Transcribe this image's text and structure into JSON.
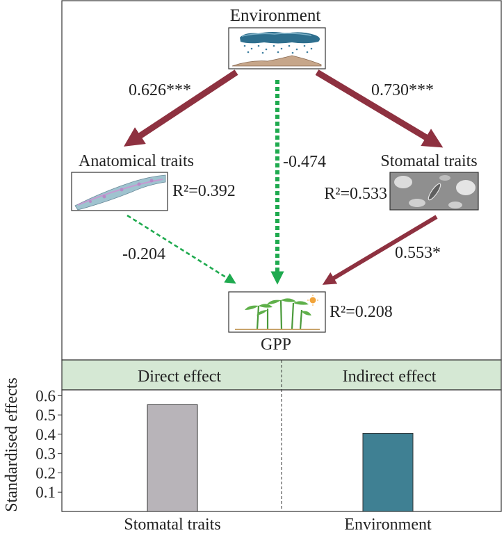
{
  "diagram": {
    "nodes": {
      "environment": "Environment",
      "anatomical": "Anatomical traits",
      "stomatal": "Stomatal traits",
      "gpp": "GPP"
    },
    "r2": {
      "anatomical": "R²=0.392",
      "stomatal": "R²=0.533",
      "gpp": "R²=0.208"
    },
    "paths": {
      "env_to_anatomical": "0.626***",
      "env_to_stomatal": "0.730***",
      "env_to_gpp": "-0.474",
      "anatomical_to_gpp": "-0.204",
      "stomatal_to_gpp": "0.553*"
    },
    "colors": {
      "positive_path": "#8e3140",
      "negative_path": "#1faa4f",
      "header_band": "#d5e8d4"
    }
  },
  "chart_data": {
    "type": "bar",
    "categories": [
      "Stomatal traits",
      "Environment"
    ],
    "values": [
      0.553,
      0.405
    ],
    "groups": [
      "Direct effect",
      "Indirect effect"
    ],
    "xlabel": "",
    "ylabel": "Standardised effects",
    "yticks": [
      0.1,
      0.2,
      0.3,
      0.4,
      0.5,
      0.6
    ],
    "ylim": [
      0,
      0.63
    ],
    "colors": [
      "#b8b4b9",
      "#3f8093"
    ],
    "grid": false
  }
}
